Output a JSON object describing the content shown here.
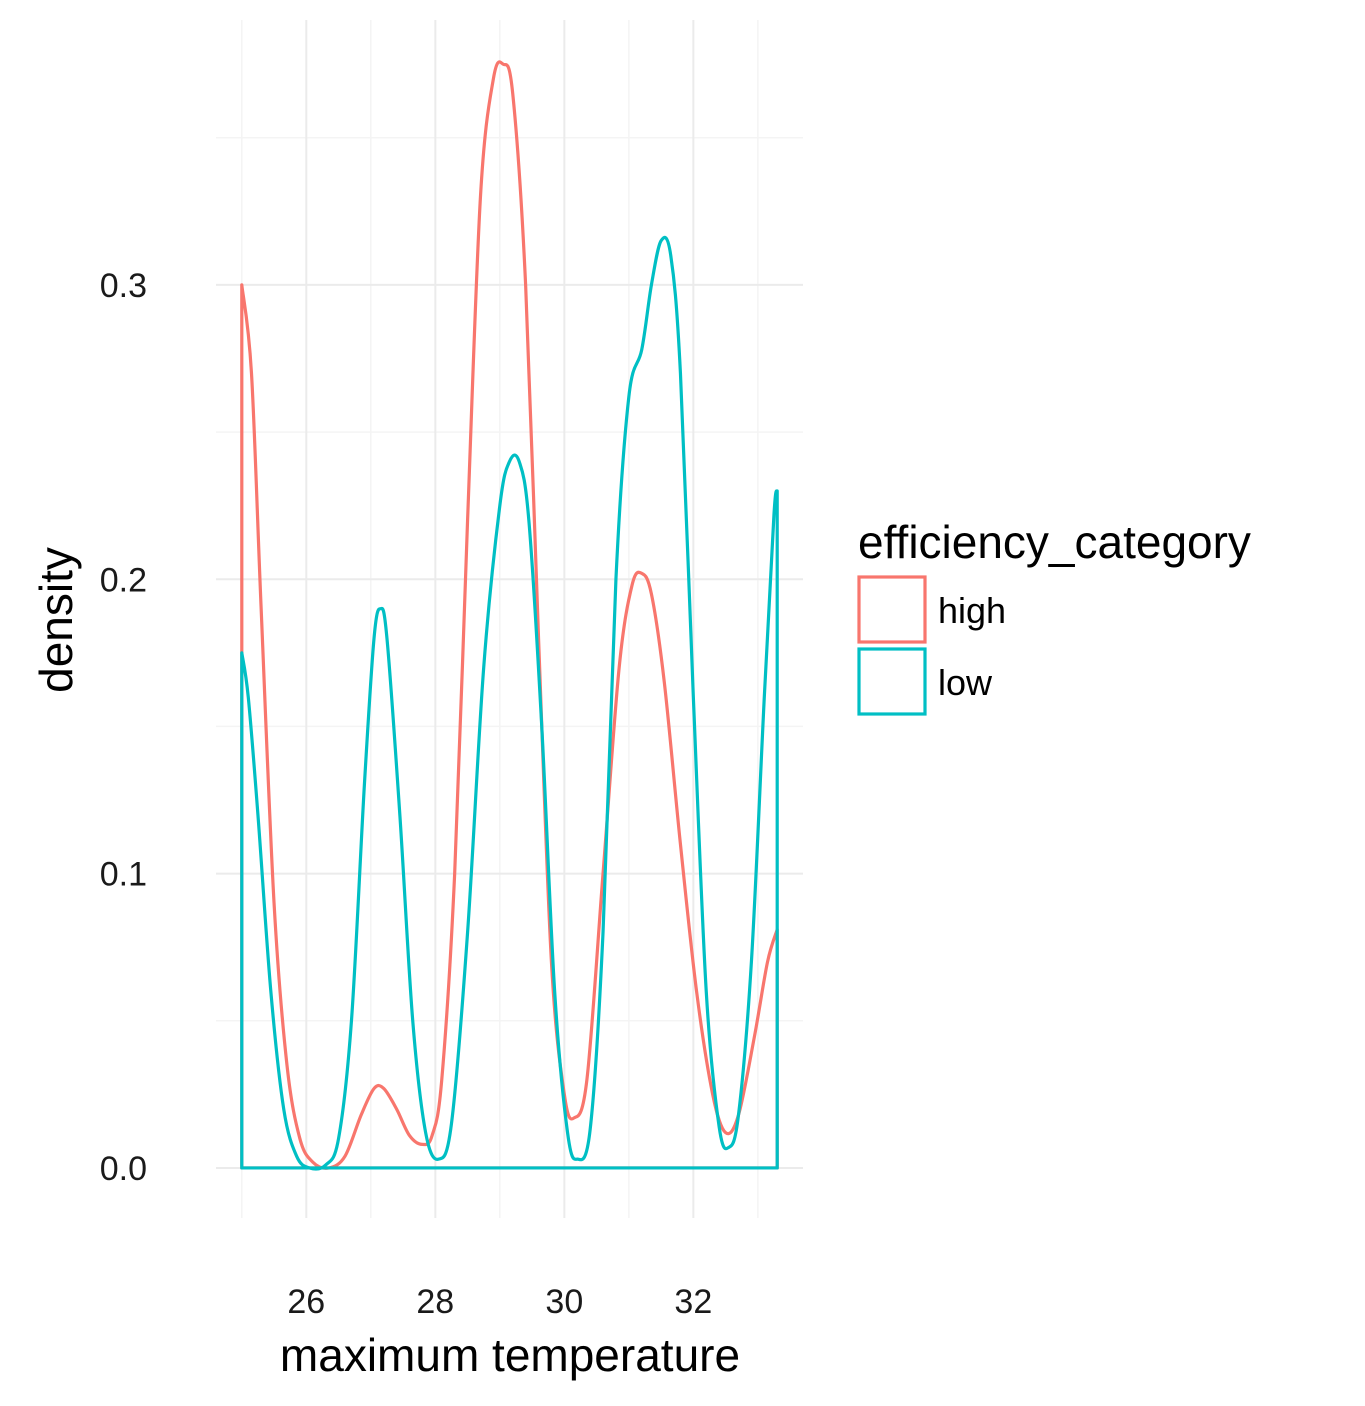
{
  "chart_data": {
    "type": "line",
    "xlabel": "maximum temperature",
    "ylabel": "density",
    "xlim": [
      24.6,
      33.7
    ],
    "ylim": [
      -0.017,
      0.39
    ],
    "x_ticks": [
      26,
      28,
      30,
      32
    ],
    "x_minor_ticks": [
      25,
      27,
      29,
      31,
      33
    ],
    "y_ticks": [
      0.0,
      0.1,
      0.2,
      0.3
    ],
    "y_tick_labels": [
      "0.0",
      "0.1",
      "0.2",
      "0.3"
    ],
    "y_minor_ticks": [
      0.05,
      0.15,
      0.25,
      0.35
    ],
    "grid": true,
    "legend": {
      "title": "efficiency_category",
      "placement": "right"
    },
    "series": [
      {
        "name": "high",
        "color": "#F8766D",
        "points": [
          [
            25.0,
            0.3
          ],
          [
            25.15,
            0.27
          ],
          [
            25.3,
            0.19
          ],
          [
            25.5,
            0.09
          ],
          [
            25.7,
            0.035
          ],
          [
            25.9,
            0.01
          ],
          [
            26.1,
            0.002
          ],
          [
            26.35,
            0.0
          ],
          [
            26.6,
            0.004
          ],
          [
            26.85,
            0.018
          ],
          [
            27.05,
            0.027
          ],
          [
            27.2,
            0.027
          ],
          [
            27.4,
            0.02
          ],
          [
            27.6,
            0.011
          ],
          [
            27.8,
            0.008
          ],
          [
            27.95,
            0.011
          ],
          [
            28.1,
            0.03
          ],
          [
            28.3,
            0.1
          ],
          [
            28.5,
            0.22
          ],
          [
            28.7,
            0.33
          ],
          [
            28.9,
            0.37
          ],
          [
            29.05,
            0.375
          ],
          [
            29.2,
            0.365
          ],
          [
            29.4,
            0.3
          ],
          [
            29.6,
            0.18
          ],
          [
            29.8,
            0.07
          ],
          [
            30.0,
            0.025
          ],
          [
            30.15,
            0.017
          ],
          [
            30.35,
            0.03
          ],
          [
            30.6,
            0.1
          ],
          [
            30.85,
            0.17
          ],
          [
            31.05,
            0.198
          ],
          [
            31.2,
            0.202
          ],
          [
            31.35,
            0.195
          ],
          [
            31.55,
            0.165
          ],
          [
            31.8,
            0.11
          ],
          [
            32.05,
            0.06
          ],
          [
            32.3,
            0.025
          ],
          [
            32.5,
            0.012
          ],
          [
            32.7,
            0.018
          ],
          [
            32.95,
            0.045
          ],
          [
            33.15,
            0.07
          ],
          [
            33.3,
            0.081
          ]
        ]
      },
      {
        "name": "low",
        "color": "#00BFC4",
        "points": [
          [
            25.0,
            0.175
          ],
          [
            25.1,
            0.16
          ],
          [
            25.25,
            0.12
          ],
          [
            25.45,
            0.06
          ],
          [
            25.65,
            0.02
          ],
          [
            25.85,
            0.004
          ],
          [
            26.05,
            0.0
          ],
          [
            26.3,
            0.001
          ],
          [
            26.5,
            0.01
          ],
          [
            26.7,
            0.05
          ],
          [
            26.9,
            0.13
          ],
          [
            27.05,
            0.18
          ],
          [
            27.15,
            0.19
          ],
          [
            27.25,
            0.18
          ],
          [
            27.45,
            0.12
          ],
          [
            27.65,
            0.05
          ],
          [
            27.85,
            0.012
          ],
          [
            28.05,
            0.003
          ],
          [
            28.25,
            0.015
          ],
          [
            28.5,
            0.08
          ],
          [
            28.75,
            0.17
          ],
          [
            29.0,
            0.225
          ],
          [
            29.15,
            0.24
          ],
          [
            29.3,
            0.24
          ],
          [
            29.45,
            0.22
          ],
          [
            29.65,
            0.15
          ],
          [
            29.85,
            0.06
          ],
          [
            30.05,
            0.012
          ],
          [
            30.2,
            0.003
          ],
          [
            30.4,
            0.013
          ],
          [
            30.6,
            0.08
          ],
          [
            30.8,
            0.2
          ],
          [
            31.0,
            0.262
          ],
          [
            31.2,
            0.278
          ],
          [
            31.35,
            0.3
          ],
          [
            31.5,
            0.315
          ],
          [
            31.65,
            0.31
          ],
          [
            31.8,
            0.27
          ],
          [
            32.0,
            0.16
          ],
          [
            32.2,
            0.06
          ],
          [
            32.4,
            0.014
          ],
          [
            32.55,
            0.007
          ],
          [
            32.7,
            0.018
          ],
          [
            32.9,
            0.07
          ],
          [
            33.1,
            0.16
          ],
          [
            33.25,
            0.222
          ],
          [
            33.3,
            0.23
          ]
        ]
      }
    ]
  }
}
